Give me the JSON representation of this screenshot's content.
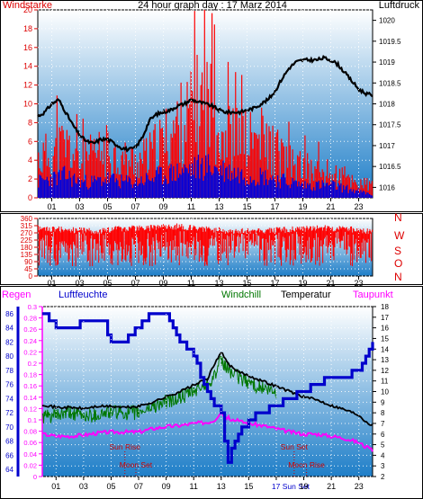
{
  "colors": {
    "wind_speed": "#ff0000",
    "wind_avg": "#0000dd",
    "pressure": "#000000",
    "wind_dir": "#ff0000",
    "temperature": "#000000",
    "windchill": "#007700",
    "dewpoint": "#ff00ff",
    "humidity": "#0000cc",
    "rain": "#ff00ff",
    "left_axis_red": "#dd0000",
    "bg_top": "#ffffff",
    "bg_bottom": "#1e7ec8"
  },
  "chart_data": [
    {
      "type": "bar",
      "title": "24 hour graph day : 17 Marz 2014",
      "left_label": "Windstarke",
      "right_label": "Luftdruck",
      "x_ticks": [
        "01",
        "03",
        "05",
        "07",
        "09",
        "11",
        "13",
        "15",
        "17",
        "19",
        "21",
        "23"
      ],
      "left_ylim": [
        0,
        20
      ],
      "left_ticks": [
        0,
        2,
        4,
        6,
        8,
        10,
        12,
        14,
        16,
        18,
        20
      ],
      "right_ylim": [
        1015.75,
        1020.25
      ],
      "right_ticks": [
        1016,
        1016.5,
        1017,
        1017.5,
        1018,
        1018.5,
        1019,
        1019.5,
        1020
      ],
      "series": [
        {
          "key": "gust",
          "x": [
            0,
            1,
            2,
            3,
            4,
            5,
            6,
            7,
            8,
            9,
            10,
            11,
            12,
            13,
            14,
            15,
            16,
            17,
            18,
            19,
            20,
            21,
            22,
            23,
            24
          ],
          "values": [
            6.5,
            7.5,
            9,
            6,
            7,
            8,
            6.5,
            6,
            7,
            9.5,
            12,
            14,
            17,
            12,
            10,
            9.5,
            10,
            8,
            6,
            5,
            4.5,
            4,
            3.5,
            2.5,
            2
          ]
        },
        {
          "key": "avg",
          "x": [
            0,
            1,
            2,
            3,
            4,
            5,
            6,
            7,
            8,
            9,
            10,
            11,
            12,
            13,
            14,
            15,
            16,
            17,
            18,
            19,
            20,
            21,
            22,
            23,
            24
          ],
          "values": [
            2.5,
            3,
            3.5,
            2.5,
            2.5,
            3,
            2.5,
            2.5,
            3,
            3.5,
            4,
            4.5,
            5,
            4.5,
            4,
            3.5,
            3.5,
            3,
            2.5,
            2,
            2,
            2,
            1.5,
            1,
            0.5
          ]
        },
        {
          "key": "pressure",
          "x": [
            0,
            0.5,
            1,
            1.5,
            2,
            2.5,
            3,
            3.5,
            4,
            4.5,
            5,
            5.5,
            6,
            6.5,
            7,
            7.5,
            8,
            8.5,
            9,
            9.5,
            10,
            10.5,
            11,
            11.5,
            12,
            12.5,
            13,
            13.5,
            14,
            14.5,
            15,
            15.5,
            16,
            16.5,
            17,
            17.5,
            18,
            18.5,
            19,
            19.5,
            20,
            20.5,
            21,
            21.5,
            22,
            22.5,
            23,
            23.5,
            24
          ],
          "values": [
            1017.7,
            1017.8,
            1018,
            1018.1,
            1017.8,
            1017.5,
            1017.25,
            1017.1,
            1017.05,
            1017.15,
            1017.15,
            1017.05,
            1016.95,
            1016.9,
            1016.95,
            1017.2,
            1017.6,
            1017.75,
            1017.8,
            1017.85,
            1017.95,
            1018,
            1018.1,
            1018.05,
            1018,
            1017.95,
            1017.85,
            1017.8,
            1017.8,
            1017.8,
            1017.85,
            1017.9,
            1018,
            1018.1,
            1018.3,
            1018.6,
            1018.85,
            1019,
            1019.05,
            1019.05,
            1019.05,
            1019.1,
            1019.05,
            1018.95,
            1018.75,
            1018.55,
            1018.35,
            1018.25,
            1018.2
          ]
        }
      ]
    },
    {
      "type": "bar",
      "right_labels": [
        "N",
        "W",
        "S",
        "O",
        "N"
      ],
      "x_ticks": [
        "01",
        "03",
        "05",
        "07",
        "09",
        "11",
        "13",
        "15",
        "17",
        "19",
        "21",
        "23"
      ],
      "ylim": [
        0,
        360
      ],
      "y_ticks": [
        0,
        45,
        90,
        135,
        180,
        225,
        270,
        315,
        360
      ],
      "series": [
        {
          "key": "direction_envelope",
          "x": [
            0,
            2,
            4,
            6,
            8,
            10,
            12,
            14,
            16,
            18,
            20,
            22,
            24
          ],
          "values": [
            320,
            310,
            300,
            315,
            320,
            330,
            315,
            300,
            300,
            310,
            320,
            315,
            300
          ]
        }
      ]
    },
    {
      "type": "line",
      "labels": {
        "rain": "Regen",
        "humidity": "Luftfeuchte",
        "windchill": "Windchill",
        "temperature": "Temperatur",
        "dewpoint": "Taupunkt"
      },
      "x_ticks": [
        "01",
        "03",
        "05",
        "07",
        "09",
        "11",
        "13",
        "15",
        "17",
        "19",
        "21",
        "23"
      ],
      "humidity_ylim": [
        63,
        87
      ],
      "humidity_ticks": [
        64,
        66,
        68,
        70,
        72,
        74,
        76,
        78,
        80,
        82,
        84,
        86
      ],
      "rain_ylim": [
        0,
        0.3
      ],
      "rain_ticks": [
        "0",
        "0.02",
        "0.04",
        "0.06",
        "0.08",
        "0.1",
        "0.12",
        "0.14",
        "0.16",
        "0.18",
        "0.2",
        "0.22",
        "0.24",
        "0.26",
        "0.28",
        "0.3"
      ],
      "temp_ylim": [
        2,
        18
      ],
      "temp_ticks": [
        2,
        3,
        4,
        5,
        6,
        7,
        8,
        9,
        10,
        11,
        12,
        13,
        14,
        15,
        16,
        17,
        18
      ],
      "series": [
        {
          "key": "temperature",
          "x": [
            0,
            1,
            2,
            3,
            4,
            5,
            6,
            7,
            8,
            9,
            10,
            11,
            12,
            12.5,
            13,
            13.3,
            13.6,
            14,
            15,
            16,
            17,
            18,
            19,
            20,
            21,
            22,
            23,
            23.5,
            24
          ],
          "values": [
            8.8,
            8.5,
            8.5,
            8.4,
            8.6,
            8.6,
            8.5,
            8.6,
            9,
            9.5,
            10,
            10.6,
            11.2,
            12.5,
            13.8,
            13,
            12.5,
            12,
            11.5,
            11,
            10.5,
            10,
            9.5,
            9.2,
            8.7,
            8.3,
            7.8,
            7.2,
            6.8
          ]
        },
        {
          "key": "windchill",
          "x": [
            0,
            1,
            2,
            3,
            4,
            5,
            6,
            7,
            8,
            9,
            10,
            11,
            12,
            12.5,
            13,
            13.3,
            13.6,
            14,
            15,
            16,
            17
          ],
          "values": [
            7.6,
            7.7,
            8,
            7.7,
            7.8,
            8.1,
            8,
            8,
            8.6,
            9,
            9.4,
            10,
            10.8,
            11.5,
            12.8,
            12.4,
            12,
            11.5,
            10.9,
            10.3,
            9.8
          ]
        },
        {
          "key": "dewpoint",
          "x": [
            0,
            1,
            2,
            3,
            4,
            5,
            6,
            7,
            8,
            9,
            10,
            11,
            12,
            12.5,
            13,
            13.3,
            14,
            15,
            16,
            17,
            18,
            19,
            20,
            21,
            22,
            23,
            23.5,
            24
          ],
          "values": [
            6,
            5.8,
            5.8,
            5.9,
            6.1,
            6.2,
            6.2,
            6.2,
            6.5,
            6.7,
            6.8,
            7,
            7.1,
            7.3,
            8.1,
            7.6,
            7.3,
            7,
            6.8,
            6.5,
            6.2,
            6,
            6,
            5.8,
            5.6,
            5.2,
            4.8,
            4.4
          ]
        },
        {
          "key": "humidity",
          "x": [
            0,
            0.5,
            1,
            2,
            2.5,
            3,
            4,
            4.5,
            5,
            5.5,
            6,
            6.5,
            7,
            7.5,
            8,
            9,
            9.3,
            10,
            11,
            11.5,
            12,
            12.3,
            12.6,
            13,
            13.2,
            13.5,
            14,
            14.2,
            14.8,
            15,
            16,
            17,
            18,
            19,
            20,
            21,
            22,
            23,
            23.5,
            24
          ],
          "values": [
            86,
            85,
            84,
            84,
            84,
            85,
            85,
            84.5,
            82,
            81.5,
            82,
            83,
            84,
            85,
            86,
            86,
            85,
            82,
            80,
            77,
            75,
            74,
            73,
            72,
            69,
            65,
            68,
            69,
            70,
            71,
            72,
            73,
            74,
            75,
            76,
            77,
            77,
            78,
            80,
            82
          ]
        }
      ],
      "annotations": [
        {
          "text": "Sun Rise",
          "x": 6
        },
        {
          "text": "Moon Set",
          "x": 6.8
        },
        {
          "text": "Sun Set",
          "x": 18.3
        },
        {
          "text": "Moon Rise",
          "x": 19.2
        },
        {
          "text": "17 Sun Set",
          "x": 17.2
        }
      ]
    }
  ]
}
